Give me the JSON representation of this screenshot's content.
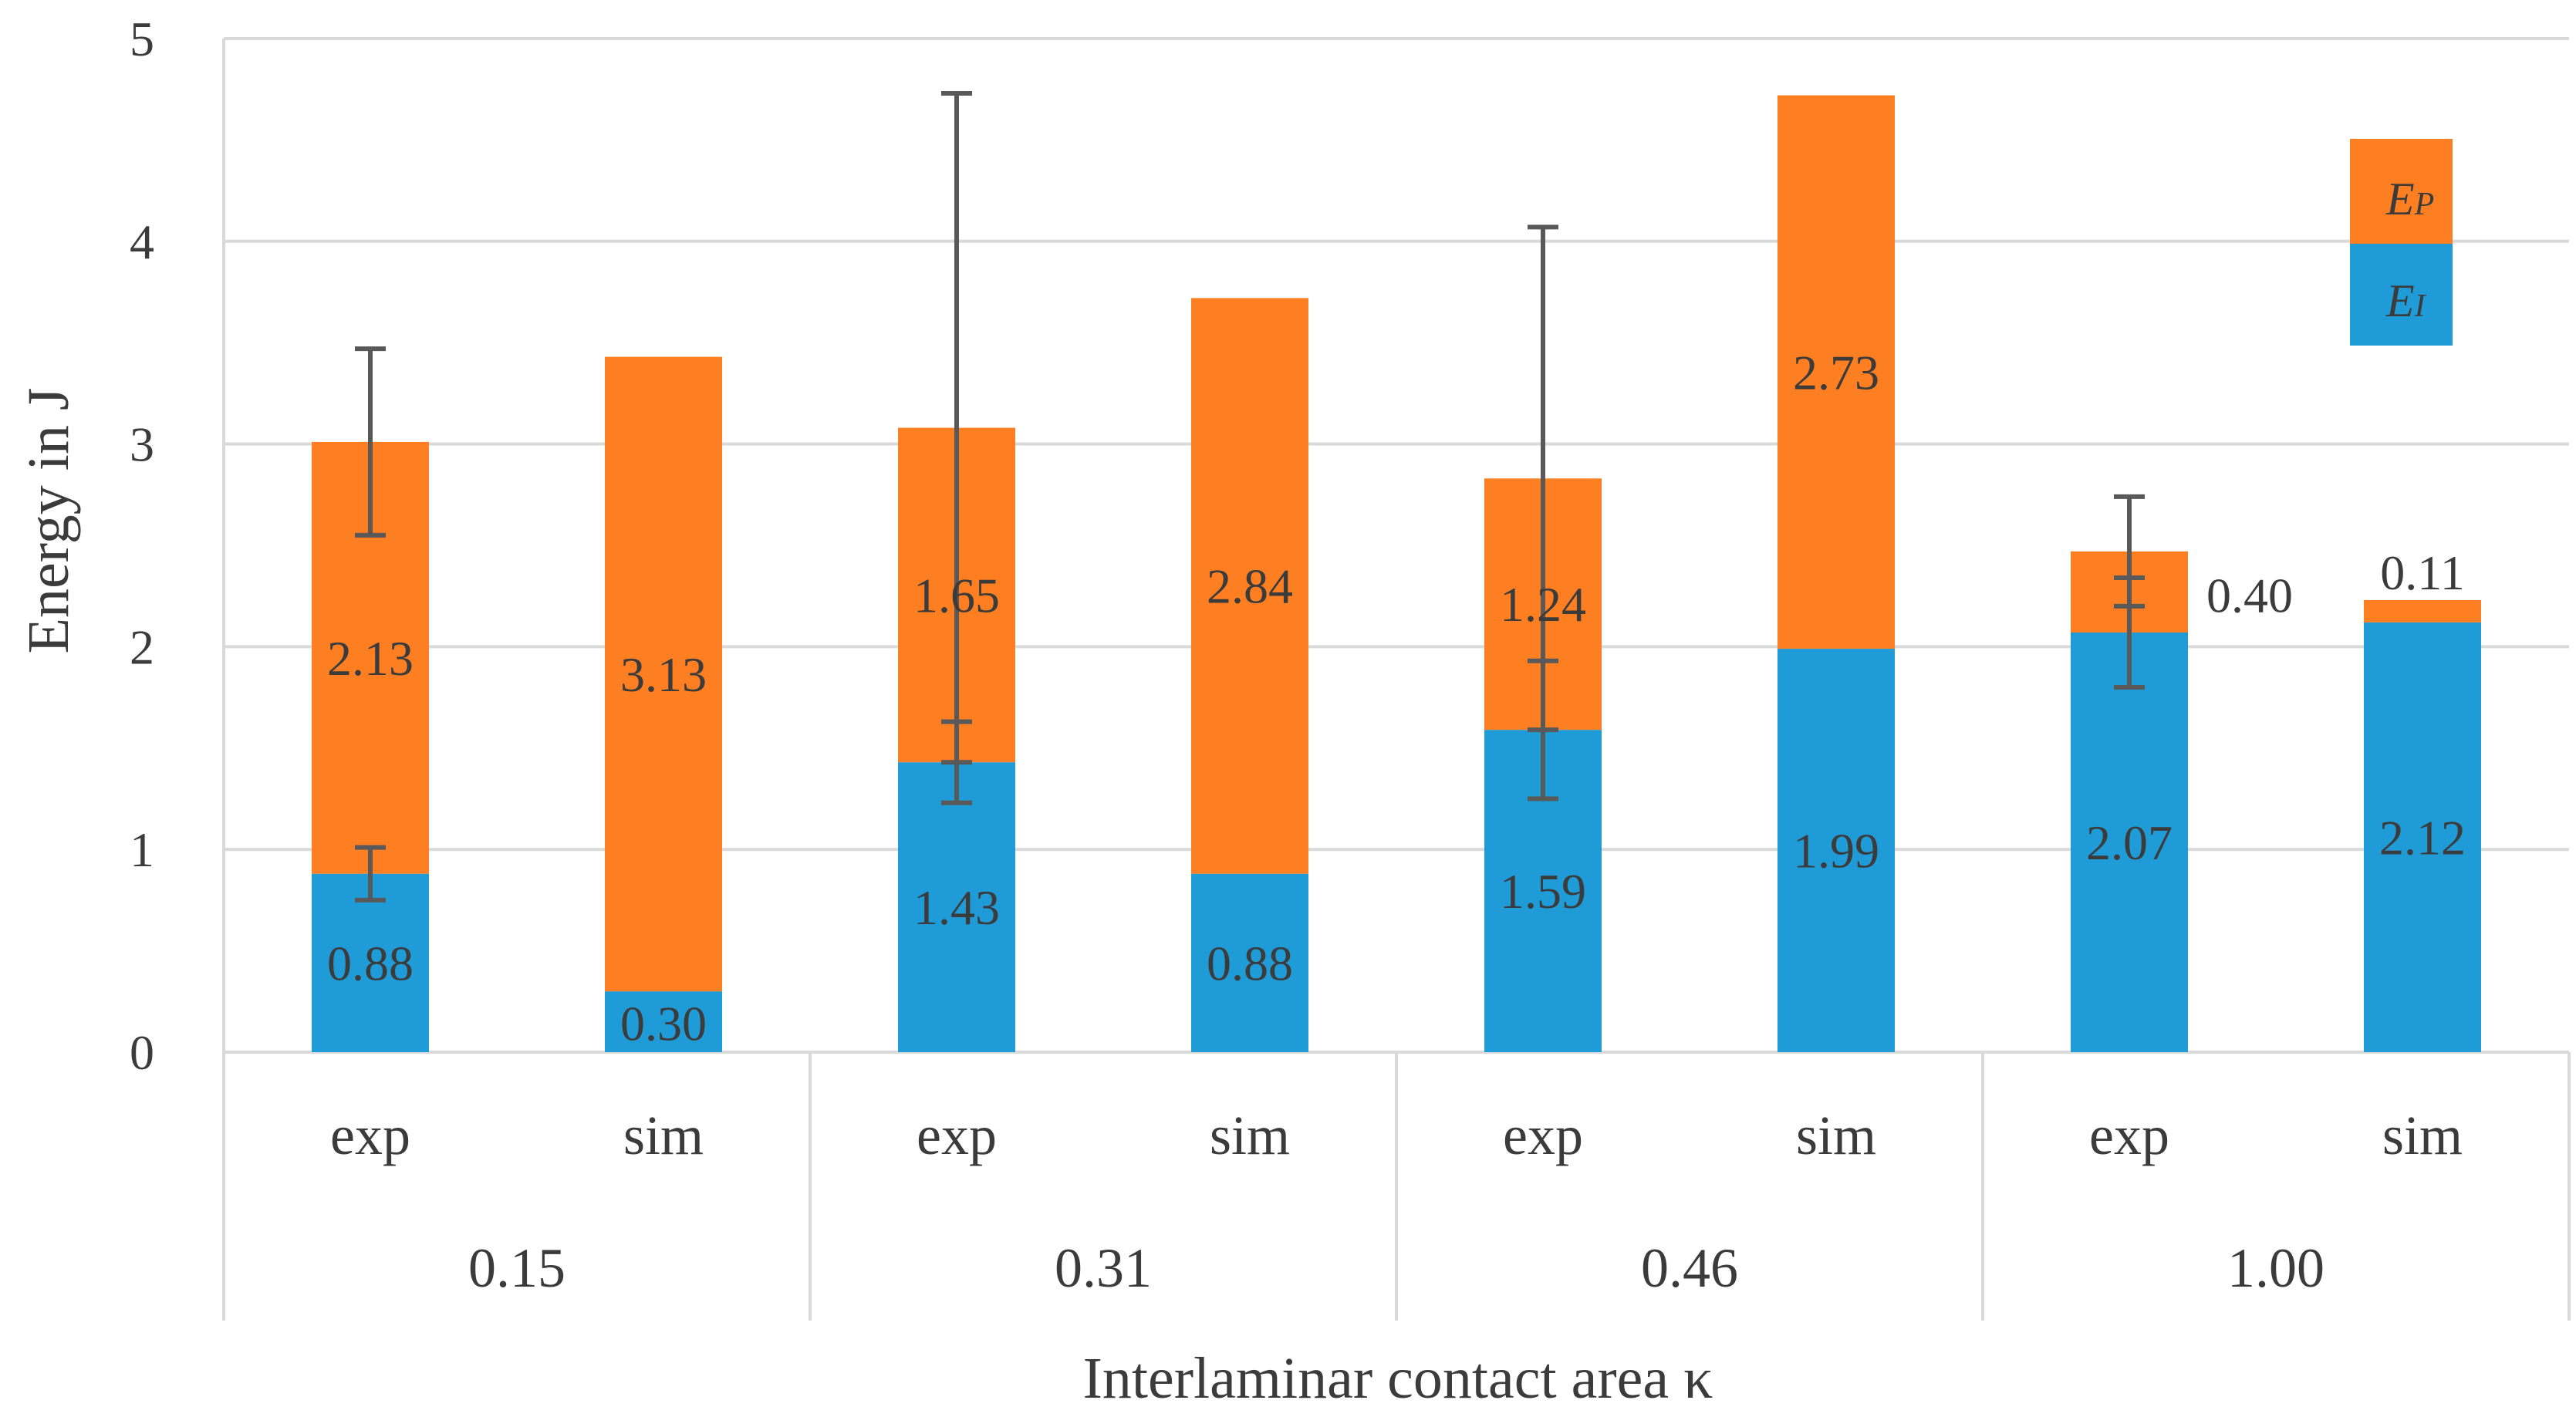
{
  "chart_data": {
    "type": "bar",
    "stacked": true,
    "title": "",
    "xlabel": "Interlaminar contact area κ",
    "ylabel": "Energy in J",
    "ylim": [
      0,
      5
    ],
    "yticks": [
      "0",
      "1",
      "2",
      "3",
      "4",
      "5"
    ],
    "grid": true,
    "legend_position": "top-right",
    "groups": [
      "0.15",
      "0.31",
      "0.46",
      "1.00"
    ],
    "categories": [
      "exp",
      "sim",
      "exp",
      "sim",
      "exp",
      "sim",
      "exp",
      "sim"
    ],
    "series": [
      {
        "name": "EI",
        "legend_main": "E",
        "legend_sub": "I",
        "color": "#1f9bd7",
        "values": [
          0.88,
          0.3,
          1.43,
          0.88,
          1.59,
          1.99,
          2.07,
          2.12
        ],
        "labels": [
          "0.88",
          "0.30",
          "1.43",
          "0.88",
          "1.59",
          "1.99",
          "2.07",
          "2.12"
        ],
        "errors": [
          0.13,
          null,
          0.2,
          null,
          0.34,
          null,
          0.27,
          null
        ]
      },
      {
        "name": "EP",
        "legend_main": "E",
        "legend_sub": "P",
        "color": "#fe7f22",
        "values": [
          2.13,
          3.13,
          1.65,
          2.84,
          1.24,
          2.73,
          0.4,
          0.11
        ],
        "labels": [
          "2.13",
          "3.13",
          "1.65",
          "2.84",
          "1.24",
          "2.73",
          "0.40",
          "0.11"
        ],
        "errors": [
          0.46,
          null,
          1.65,
          null,
          1.24,
          null,
          0.27,
          null
        ]
      }
    ]
  }
}
